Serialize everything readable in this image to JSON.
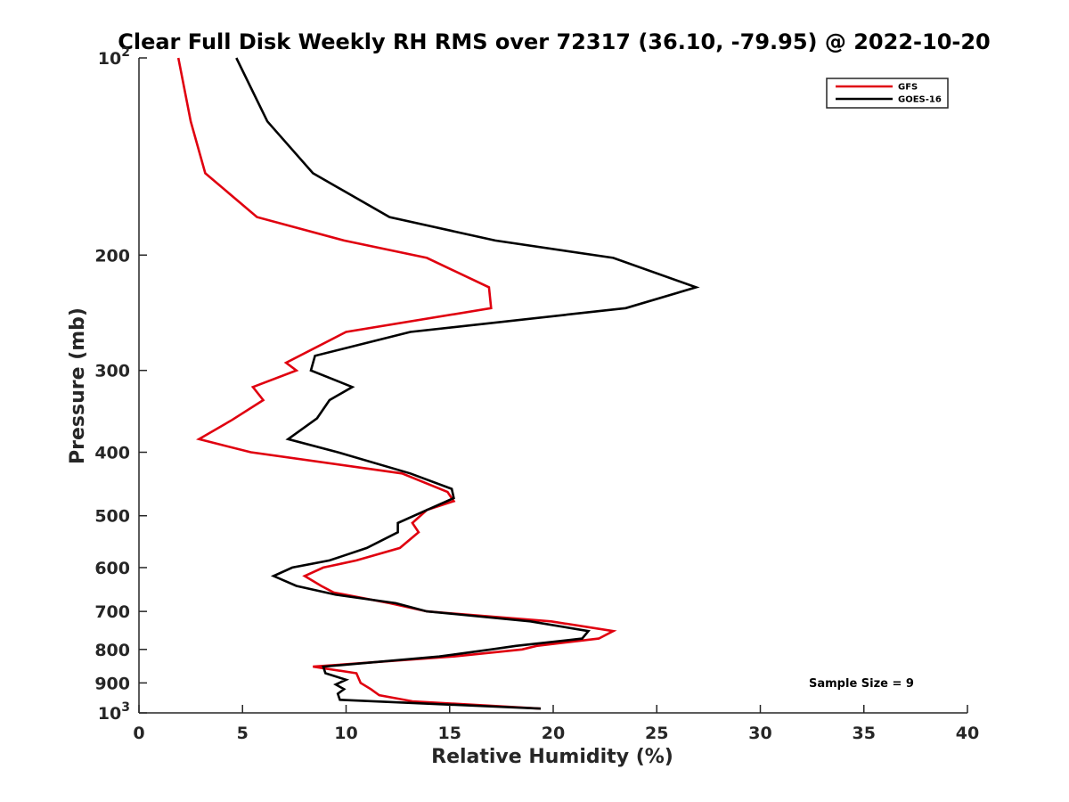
{
  "chart_data": {
    "type": "line",
    "title": "Clear Full Disk Weekly RH RMS over 72317 (36.10, -79.95) @ 2022-10-20",
    "xlabel": "Relative Humidity (%)",
    "ylabel": "Pressure (mb)",
    "xlim": [
      0,
      40
    ],
    "ylim": [
      100,
      1000
    ],
    "yscale": "log",
    "y_reversed": true,
    "x_ticks": [
      "0",
      "5",
      "10",
      "15",
      "20",
      "25",
      "30",
      "35",
      "40"
    ],
    "y_ticks": [
      {
        "value": 100,
        "base": "10",
        "exp": "2",
        "label": ""
      },
      {
        "value": 200,
        "base": "",
        "exp": "",
        "label": "200"
      },
      {
        "value": 300,
        "base": "",
        "exp": "",
        "label": "300"
      },
      {
        "value": 400,
        "base": "",
        "exp": "",
        "label": "400"
      },
      {
        "value": 500,
        "base": "",
        "exp": "",
        "label": "500"
      },
      {
        "value": 600,
        "base": "",
        "exp": "",
        "label": "600"
      },
      {
        "value": 700,
        "base": "",
        "exp": "",
        "label": "700"
      },
      {
        "value": 800,
        "base": "",
        "exp": "",
        "label": "800"
      },
      {
        "value": 900,
        "base": "",
        "exp": "",
        "label": "900"
      },
      {
        "value": 1000,
        "base": "10",
        "exp": "3",
        "label": ""
      }
    ],
    "legend_position": "top-right",
    "grid": false,
    "series": [
      {
        "name": "GFS",
        "color": "#e0000f",
        "points": [
          [
            1.9,
            100
          ],
          [
            2.5,
            125
          ],
          [
            3.2,
            150
          ],
          [
            5.7,
            175
          ],
          [
            9.9,
            190
          ],
          [
            13.9,
            202
          ],
          [
            16.9,
            224
          ],
          [
            17.0,
            241
          ],
          [
            10.0,
            262
          ],
          [
            7.1,
            292
          ],
          [
            7.6,
            300
          ],
          [
            5.5,
            318
          ],
          [
            6.0,
            333
          ],
          [
            4.5,
            357
          ],
          [
            2.9,
            382
          ],
          [
            5.4,
            400
          ],
          [
            12.7,
            431
          ],
          [
            14.9,
            460
          ],
          [
            15.2,
            475
          ],
          [
            13.9,
            490
          ],
          [
            13.2,
            513
          ],
          [
            13.5,
            530
          ],
          [
            12.6,
            560
          ],
          [
            10.5,
            585
          ],
          [
            8.9,
            600
          ],
          [
            8.0,
            618
          ],
          [
            8.8,
            640
          ],
          [
            9.4,
            655
          ],
          [
            12.1,
            680
          ],
          [
            13.9,
            700
          ],
          [
            19.9,
            725
          ],
          [
            22.9,
            750
          ],
          [
            22.2,
            770
          ],
          [
            19.2,
            790
          ],
          [
            18.5,
            800
          ],
          [
            15.2,
            820
          ],
          [
            8.4,
            850
          ],
          [
            10.5,
            870
          ],
          [
            10.7,
            900
          ],
          [
            11.2,
            920
          ],
          [
            11.6,
            940
          ],
          [
            13.2,
            960
          ],
          [
            19.4,
            985
          ]
        ]
      },
      {
        "name": "GOES-16",
        "color": "#000000",
        "points": [
          [
            4.7,
            100
          ],
          [
            6.2,
            125
          ],
          [
            8.4,
            150
          ],
          [
            12.1,
            175
          ],
          [
            17.2,
            190
          ],
          [
            22.9,
            202
          ],
          [
            26.9,
            224
          ],
          [
            23.5,
            241
          ],
          [
            13.1,
            262
          ],
          [
            8.5,
            285
          ],
          [
            8.3,
            300
          ],
          [
            10.3,
            318
          ],
          [
            9.2,
            333
          ],
          [
            8.6,
            355
          ],
          [
            7.2,
            382
          ],
          [
            9.6,
            400
          ],
          [
            13.1,
            431
          ],
          [
            15.1,
            455
          ],
          [
            15.2,
            470
          ],
          [
            13.9,
            490
          ],
          [
            12.5,
            513
          ],
          [
            12.5,
            530
          ],
          [
            11.0,
            560
          ],
          [
            9.2,
            585
          ],
          [
            7.4,
            600
          ],
          [
            6.5,
            618
          ],
          [
            7.6,
            640
          ],
          [
            9.5,
            660
          ],
          [
            12.4,
            680
          ],
          [
            13.9,
            700
          ],
          [
            18.9,
            725
          ],
          [
            21.7,
            750
          ],
          [
            21.4,
            770
          ],
          [
            18.2,
            790
          ],
          [
            17.0,
            800
          ],
          [
            14.5,
            820
          ],
          [
            8.9,
            850
          ],
          [
            9.0,
            870
          ],
          [
            10.0,
            890
          ],
          [
            9.5,
            905
          ],
          [
            9.9,
            920
          ],
          [
            9.6,
            935
          ],
          [
            9.7,
            955
          ],
          [
            19.4,
            985
          ]
        ]
      }
    ],
    "annotation": "Sample Size = 9"
  }
}
